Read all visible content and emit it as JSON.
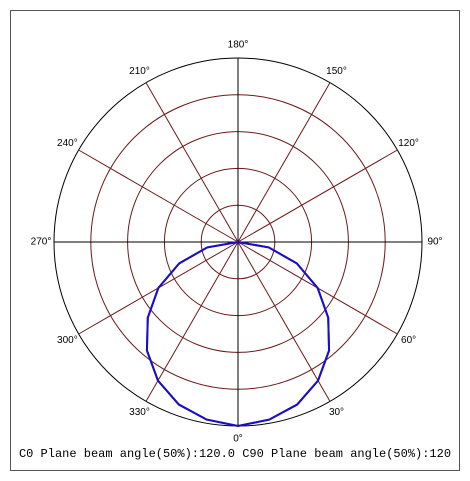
{
  "chart_data": {
    "type": "polar",
    "angle_ticks": [
      {
        "value": 0,
        "label": "0°"
      },
      {
        "value": 30,
        "label": "30°"
      },
      {
        "value": 60,
        "label": "60°"
      },
      {
        "value": 90,
        "label": "90°"
      },
      {
        "value": 120,
        "label": "120°"
      },
      {
        "value": 150,
        "label": "150°"
      },
      {
        "value": 180,
        "label": "180°"
      },
      {
        "value": 210,
        "label": "210°"
      },
      {
        "value": 240,
        "label": "240°"
      },
      {
        "value": 270,
        "label": "270°"
      },
      {
        "value": 300,
        "label": "300°"
      },
      {
        "value": 330,
        "label": "330°"
      }
    ],
    "rlim": [
      0,
      1
    ],
    "rgrid": [
      0.2,
      0.4,
      0.6,
      0.8,
      1
    ],
    "series": [
      {
        "color": "#d02020",
        "x": [
          270,
          280,
          290,
          300,
          310,
          320,
          330,
          340,
          350,
          0,
          10,
          20,
          30,
          40,
          50,
          60,
          70,
          80,
          90
        ],
        "values": [
          0,
          0.17,
          0.34,
          0.5,
          0.64,
          0.77,
          0.87,
          0.94,
          0.98,
          1,
          0.98,
          0.94,
          0.87,
          0.77,
          0.64,
          0.5,
          0.34,
          0.17,
          0
        ]
      },
      {
        "color": "#1010d0",
        "x": [
          270,
          280,
          290,
          300,
          310,
          320,
          330,
          340,
          350,
          0,
          10,
          20,
          30,
          40,
          50,
          60,
          70,
          80,
          90
        ],
        "values": [
          0,
          0.17,
          0.34,
          0.5,
          0.64,
          0.77,
          0.87,
          0.94,
          0.98,
          1,
          0.98,
          0.94,
          0.87,
          0.77,
          0.64,
          0.5,
          0.34,
          0.17,
          0
        ]
      }
    ],
    "caption": "C0 Plane beam angle(50%):120.0  C90 Plane beam angle(50%):120"
  }
}
